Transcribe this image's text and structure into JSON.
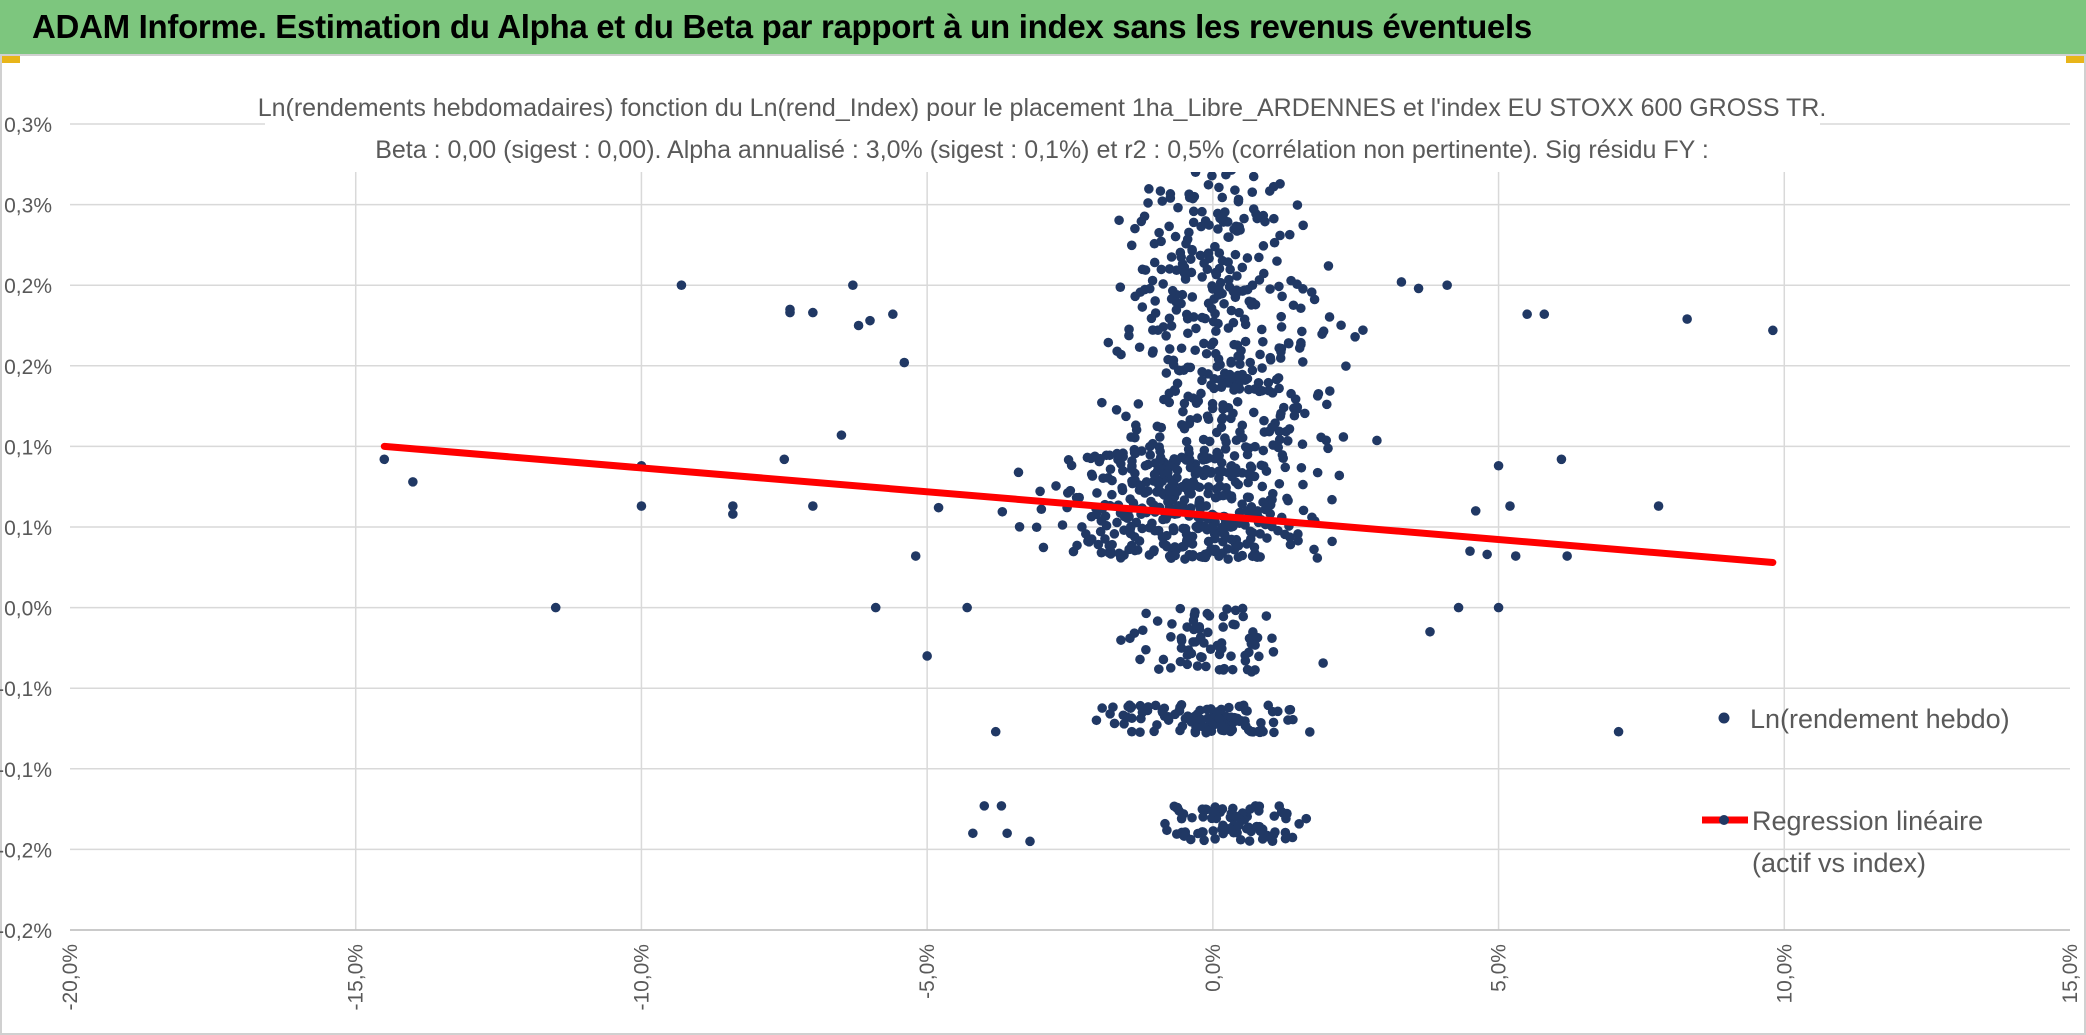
{
  "header": {
    "title": "ADAM Informe. Estimation du Alpha et du Beta par rapport à un index sans les revenus éventuels",
    "background_color": "#7dc67e"
  },
  "chart_data": {
    "type": "scatter",
    "title": "Ln(rendements hebdomadaires) fonction du Ln(rend_Index) pour le placement 1ha_Libre_ARDENNES et l'index EU STOXX 600 GROSS TR.",
    "subtitle": "Beta : 0,00 (sigest : 0,00). Alpha annualisé : 3,0% (sigest : 0,1%) et r2 : 0,5% (corrélation non pertinente). Sig résidu FY :",
    "xlabel": "",
    "ylabel": "",
    "xlim": [
      -20,
      15
    ],
    "ylim": [
      -0.2,
      0.3
    ],
    "x_ticks": [
      -20,
      -15,
      -10,
      -5,
      0,
      5,
      10,
      15
    ],
    "x_tick_labels": [
      "-20,0%",
      "-15,0%",
      "-10,0%",
      "-5,0%",
      "0,0%",
      "5,0%",
      "10,0%",
      "15,0%"
    ],
    "y_ticks": [
      0.3,
      0.25,
      0.2,
      0.15,
      0.1,
      0.05,
      0.0,
      -0.05,
      -0.1,
      -0.15,
      -0.2
    ],
    "y_tick_labels": [
      "0,3%",
      "0,3%",
      "0,2%",
      "0,2%",
      "0,1%",
      "0,1%",
      "0,0%",
      "-0,1%",
      "-0,1%",
      "-0,2%",
      "-0,2%"
    ],
    "grid": true,
    "legend_position": "right",
    "series": [
      {
        "name": "Ln(rendement hebdo)",
        "kind": "scatter",
        "color": "#203864",
        "outliers": [
          [
            -14.5,
            0.092
          ],
          [
            -14.0,
            0.078
          ],
          [
            -11.5,
            0.0
          ],
          [
            -10.0,
            0.088
          ],
          [
            -10.0,
            0.063
          ],
          [
            -9.3,
            0.2
          ],
          [
            -8.4,
            0.063
          ],
          [
            -8.4,
            0.058
          ],
          [
            -7.5,
            0.092
          ],
          [
            -7.4,
            0.183
          ],
          [
            -7.4,
            0.185
          ],
          [
            -7.0,
            0.183
          ],
          [
            -6.3,
            0.2
          ],
          [
            -6.5,
            0.107
          ],
          [
            -6.0,
            0.178
          ],
          [
            -5.9,
            0.0
          ],
          [
            -5.6,
            0.182
          ],
          [
            -5.4,
            0.152
          ],
          [
            -6.2,
            0.175
          ],
          [
            -7.0,
            0.063
          ],
          [
            -5.0,
            -0.03
          ],
          [
            -5.2,
            0.032
          ],
          [
            -4.8,
            0.062
          ],
          [
            -4.3,
            0.0
          ],
          [
            -3.8,
            -0.077
          ],
          [
            -4.0,
            -0.123
          ],
          [
            -3.7,
            -0.123
          ],
          [
            -3.6,
            -0.14
          ],
          [
            -3.2,
            -0.145
          ],
          [
            -4.2,
            -0.14
          ],
          [
            5.0,
            0.0
          ],
          [
            5.0,
            0.088
          ],
          [
            5.8,
            0.182
          ],
          [
            5.5,
            0.182
          ],
          [
            6.1,
            0.092
          ],
          [
            6.2,
            0.032
          ],
          [
            7.1,
            -0.077
          ],
          [
            7.8,
            0.063
          ],
          [
            8.3,
            0.179
          ],
          [
            9.8,
            0.172
          ],
          [
            4.5,
            0.035
          ],
          [
            4.8,
            0.033
          ],
          [
            5.3,
            0.032
          ],
          [
            4.3,
            0.0
          ],
          [
            3.8,
            -0.015
          ],
          [
            4.6,
            0.06
          ],
          [
            5.2,
            0.063
          ],
          [
            3.3,
            0.202
          ],
          [
            3.6,
            0.198
          ],
          [
            4.1,
            0.2
          ]
        ],
        "clusters": [
          {
            "x_range": [
              -4.5,
              3.5
            ],
            "y_range": [
              0.03,
              0.1
            ],
            "count": 420
          },
          {
            "x_range": [
              -3.5,
              3.8
            ],
            "y_range": [
              0.1,
              0.2
            ],
            "count": 260
          },
          {
            "x_range": [
              -2.5,
              2.5
            ],
            "y_range": [
              0.2,
              0.26
            ],
            "count": 110
          },
          {
            "x_range": [
              -1.5,
              1.8
            ],
            "y_range": [
              0.26,
              0.31
            ],
            "count": 35
          },
          {
            "x_range": [
              -2.5,
              2.5
            ],
            "y_range": [
              -0.04,
              0.0
            ],
            "count": 75
          },
          {
            "x_range": [
              -3.5,
              3.0
            ],
            "y_range": [
              -0.078,
              -0.06
            ],
            "count": 110
          },
          {
            "x_range": [
              -2.0,
              2.8
            ],
            "y_range": [
              -0.145,
              -0.123
            ],
            "count": 90
          }
        ]
      },
      {
        "name": "Regression linéaire (actif vs index)",
        "kind": "line",
        "color": "#ff0000",
        "points": [
          [
            -14.5,
            0.1
          ],
          [
            9.8,
            0.028
          ]
        ]
      }
    ]
  },
  "legend": {
    "scatter_label": "Ln(rendement hebdo)",
    "line_label_1": "Regression linéaire",
    "line_label_2": "(actif vs index)"
  }
}
